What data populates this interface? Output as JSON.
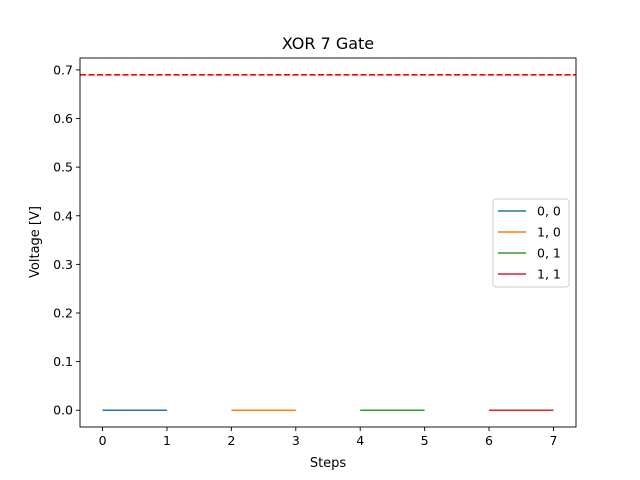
{
  "chart_data": {
    "type": "line",
    "title": "XOR 7 Gate",
    "xlabel": "Steps",
    "ylabel": "Voltage [V]",
    "xlim": [
      -0.35,
      7.35
    ],
    "ylim": [
      -0.0345,
      0.7245
    ],
    "xticks": [
      0,
      1,
      2,
      3,
      4,
      5,
      6,
      7
    ],
    "yticks": [
      0.0,
      0.1,
      0.2,
      0.3,
      0.4,
      0.5,
      0.6,
      0.7
    ],
    "ytick_labels": [
      "0.0",
      "0.1",
      "0.2",
      "0.3",
      "0.4",
      "0.5",
      "0.6",
      "0.7"
    ],
    "grid": false,
    "legend_position": "center-right",
    "series": [
      {
        "name": "0, 0",
        "color": "#1f77b4",
        "x": [
          0,
          1
        ],
        "y": [
          0.0,
          0.0
        ]
      },
      {
        "name": "1, 0",
        "color": "#ff7f0e",
        "x": [
          2,
          3
        ],
        "y": [
          0.0,
          0.0
        ]
      },
      {
        "name": "0, 1",
        "color": "#2ca02c",
        "x": [
          4,
          5
        ],
        "y": [
          0.0,
          0.0
        ]
      },
      {
        "name": "1, 1",
        "color": "#d62728",
        "x": [
          6,
          7
        ],
        "y": [
          0.0,
          0.0
        ]
      }
    ],
    "reference_lines": [
      {
        "orientation": "horizontal",
        "y": 0.69,
        "color": "#ff0000",
        "style": "dashed"
      }
    ]
  }
}
